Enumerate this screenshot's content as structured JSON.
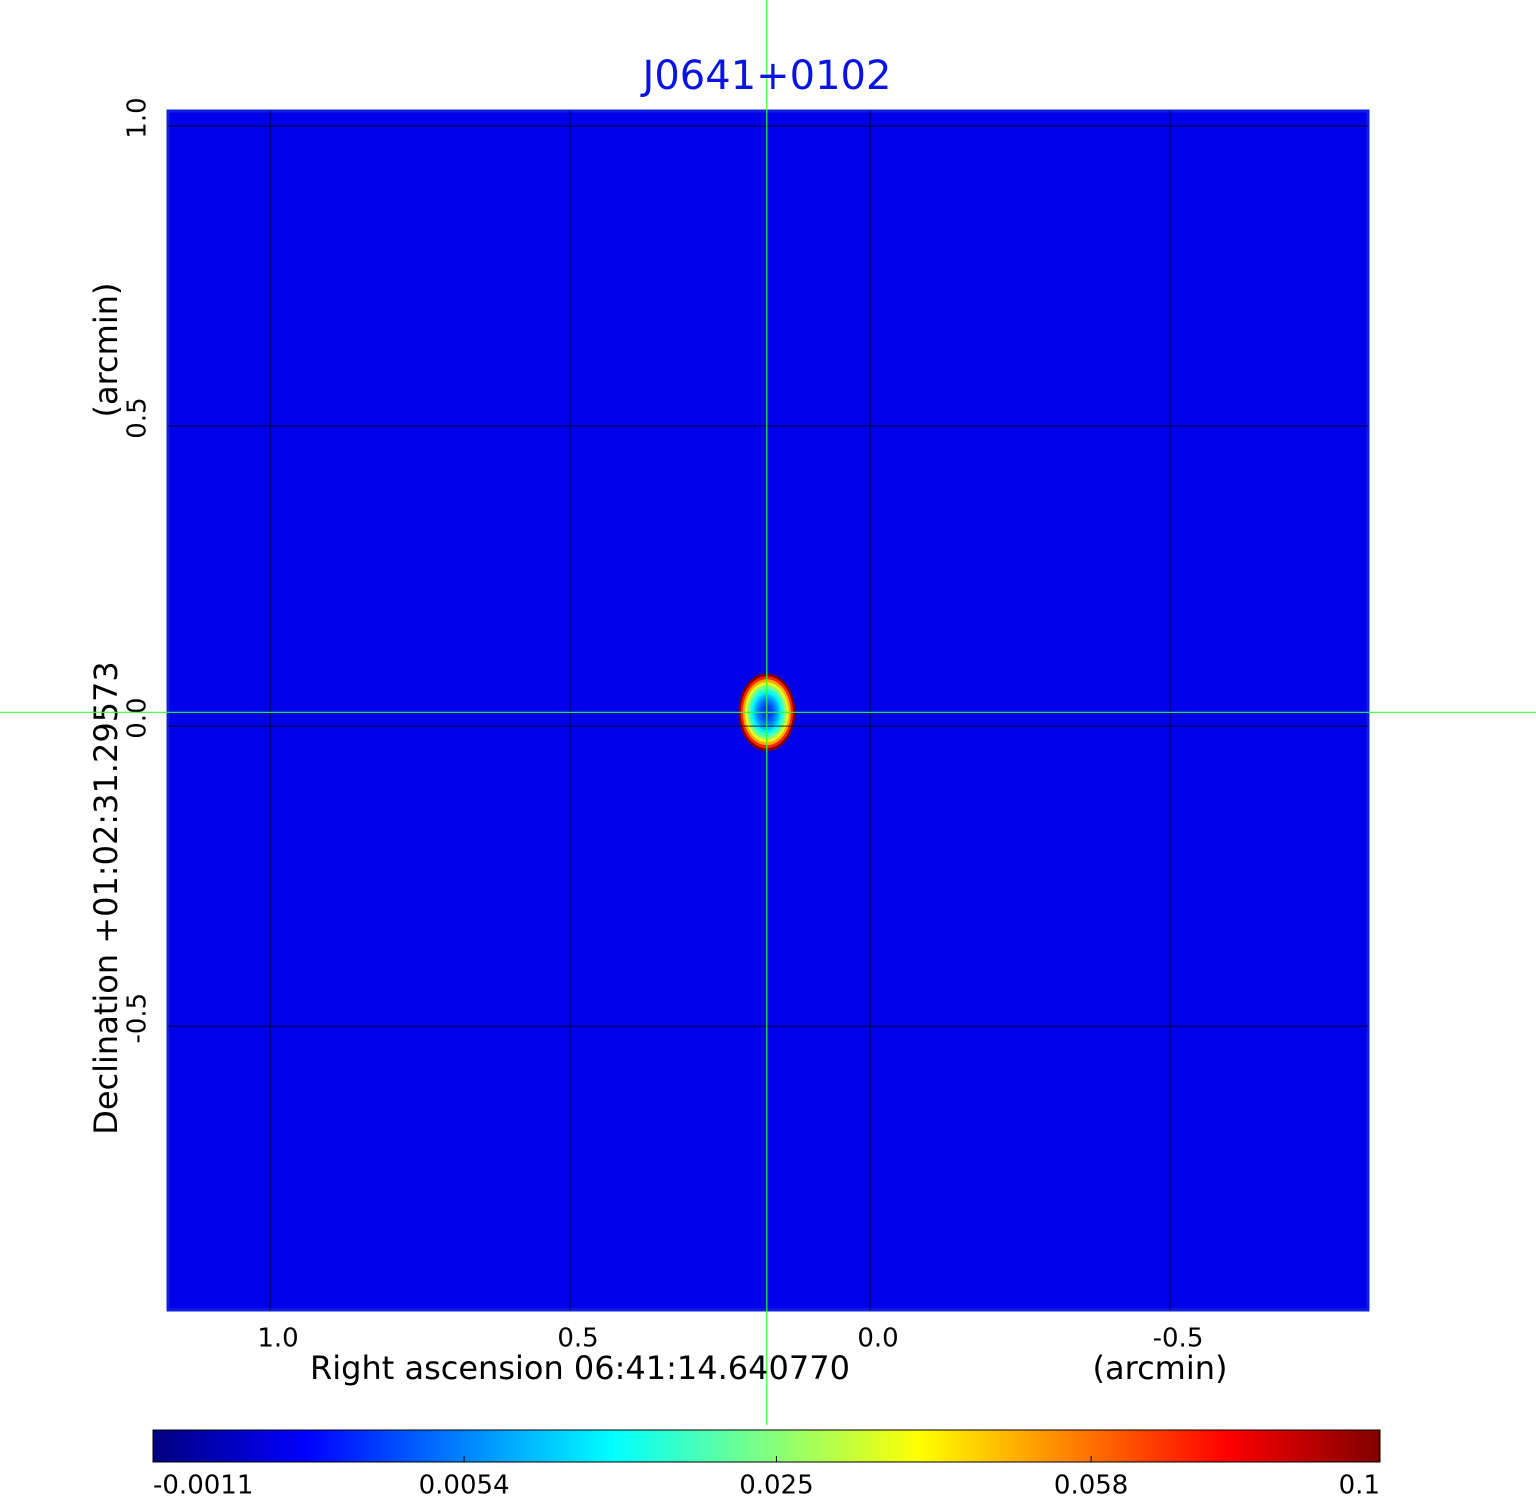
{
  "chart_data": {
    "type": "image",
    "title": "J0641+0102",
    "title_color": "#0a14e0",
    "x_label": "Right ascension  06:41:14.640770",
    "x_unit": "(arcmin)",
    "y_label": "Declination  +01:02:31.29573",
    "y_unit": "(arcmin)",
    "xlim": [
      1.17,
      -0.83
    ],
    "xticks": [
      {
        "value": 1,
        "label": "1.0"
      },
      0.5,
      {
        "value": 0,
        "label": "0.0"
      },
      -0.5
    ],
    "ylim": [
      -0.973,
      1.025
    ],
    "yticks": [
      {
        "value": 1,
        "label": "1.0"
      },
      0.5,
      {
        "value": 0,
        "label": "0.0"
      },
      -0.5
    ],
    "grid": true,
    "colormap": "jet",
    "source": {
      "x": 0.172,
      "y": 0.023,
      "peak": 0.1
    },
    "crosshair_color": "#33ff33",
    "colorbar": {
      "lim": [
        -0.0011,
        0.1
      ],
      "scale": "sqrt",
      "ticks": [
        -0.0011,
        0.0054,
        0.025,
        0.058,
        0.1
      ]
    }
  }
}
